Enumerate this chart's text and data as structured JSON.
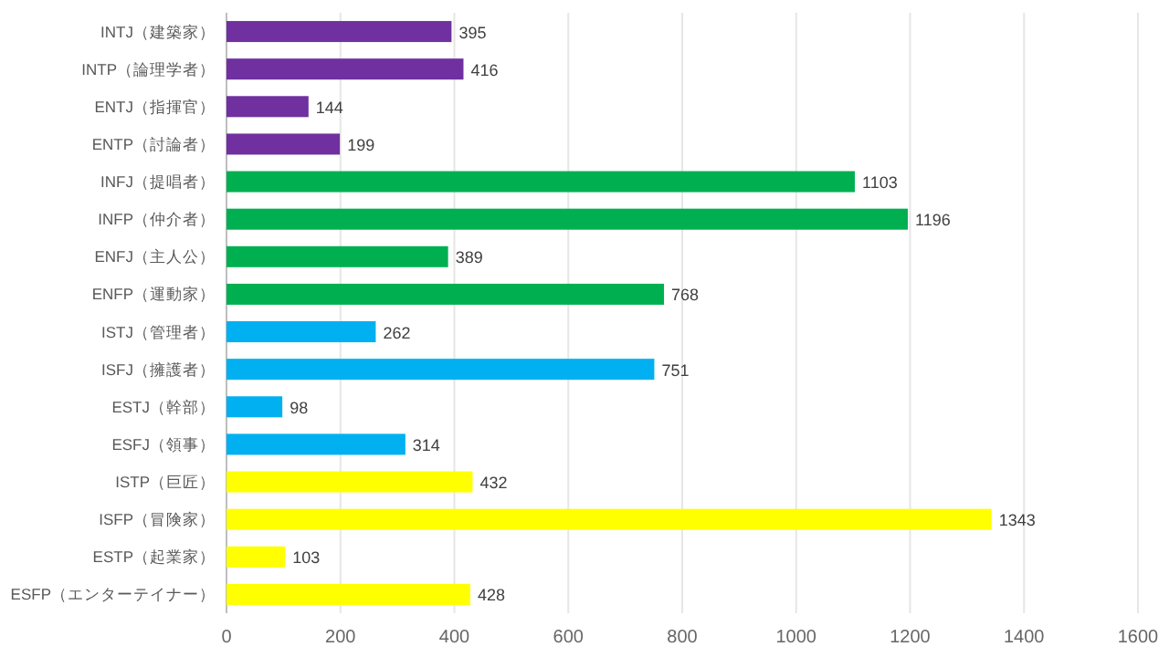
{
  "chart_data": {
    "type": "bar",
    "orientation": "horizontal",
    "categories": [
      "INTJ（建築家）",
      "INTP（論理学者）",
      "ENTJ（指揮官）",
      "ENTP（討論者）",
      "INFJ（提唱者）",
      "INFP（仲介者）",
      "ENFJ（主人公）",
      "ENFP（運動家）",
      "ISTJ（管理者）",
      "ISFJ（擁護者）",
      "ESTJ（幹部）",
      "ESFJ（領事）",
      "ISTP（巨匠）",
      "ISFP（冒険家）",
      "ESTP（起業家）",
      "ESFP（エンターテイナー）"
    ],
    "values": [
      395,
      416,
      144,
      199,
      1103,
      1196,
      389,
      768,
      262,
      751,
      98,
      314,
      432,
      1343,
      103,
      428
    ],
    "colors": [
      "#7030a0",
      "#7030a0",
      "#7030a0",
      "#7030a0",
      "#00b050",
      "#00b050",
      "#00b050",
      "#00b050",
      "#00b0f0",
      "#00b0f0",
      "#00b0f0",
      "#00b0f0",
      "#ffff00",
      "#ffff00",
      "#ffff00",
      "#ffff00"
    ],
    "xlim": [
      0,
      1600
    ],
    "xticks": [
      0,
      200,
      400,
      600,
      800,
      1000,
      1200,
      1400,
      1600
    ],
    "grid": "x",
    "data_labels": true
  }
}
